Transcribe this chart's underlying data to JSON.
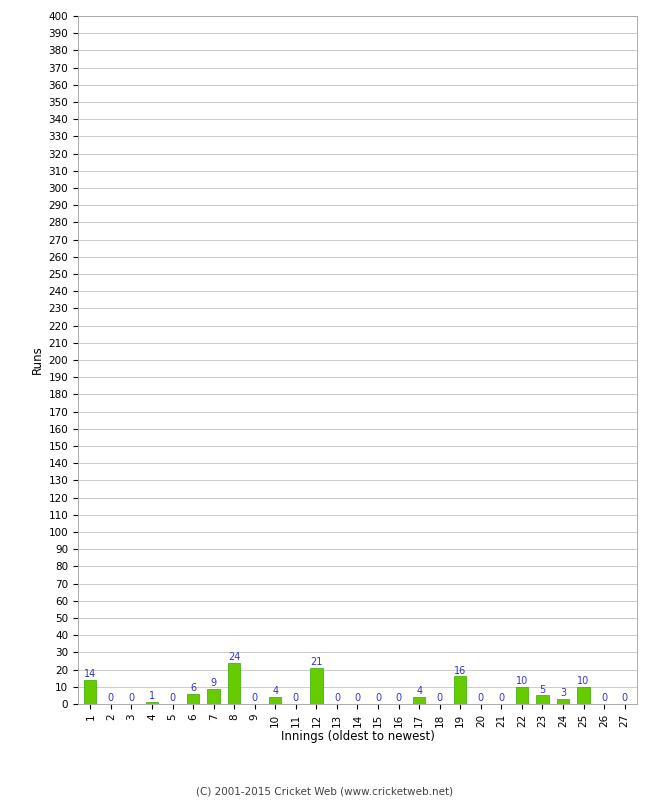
{
  "innings": [
    1,
    2,
    3,
    4,
    5,
    6,
    7,
    8,
    9,
    10,
    11,
    12,
    13,
    14,
    15,
    16,
    17,
    18,
    19,
    20,
    21,
    22,
    23,
    24,
    25,
    26,
    27
  ],
  "runs": [
    14,
    0,
    0,
    1,
    0,
    6,
    9,
    24,
    0,
    4,
    0,
    21,
    0,
    0,
    0,
    0,
    4,
    0,
    16,
    0,
    0,
    10,
    5,
    3,
    10,
    0,
    0
  ],
  "bar_color": "#66cc00",
  "bar_edge_color": "#33aa00",
  "label_color": "#3333cc",
  "ylabel": "Runs",
  "xlabel": "Innings (oldest to newest)",
  "ylim": [
    0,
    400
  ],
  "yticks": [
    0,
    10,
    20,
    30,
    40,
    50,
    60,
    70,
    80,
    90,
    100,
    110,
    120,
    130,
    140,
    150,
    160,
    170,
    180,
    190,
    200,
    210,
    220,
    230,
    240,
    250,
    260,
    270,
    280,
    290,
    300,
    310,
    320,
    330,
    340,
    350,
    360,
    370,
    380,
    390,
    400
  ],
  "background_color": "#ffffff",
  "grid_color": "#cccccc",
  "footer": "(C) 2001-2015 Cricket Web (www.cricketweb.net)"
}
